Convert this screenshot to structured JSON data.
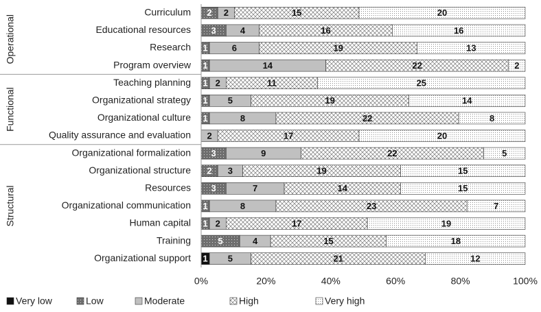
{
  "chart_data": {
    "type": "stacked-bar-100",
    "groups": [
      {
        "name": "Operational",
        "categories": [
          "Curriculum",
          "Educational resources",
          "Research",
          "Program overview"
        ]
      },
      {
        "name": "Functional",
        "categories": [
          "Teaching planning",
          "Organizational strategy",
          "Organizational culture",
          "Quality assurance and evaluation"
        ]
      },
      {
        "name": "Structural",
        "categories": [
          "Organizational formalization",
          "Organizational structure",
          "Resources",
          "Organizational communication",
          "Human capital",
          "Training",
          "Organizational support"
        ]
      }
    ],
    "series": [
      {
        "name": "Very low",
        "color": "#111111",
        "values": [
          null,
          null,
          null,
          null,
          null,
          null,
          null,
          null,
          null,
          null,
          null,
          null,
          null,
          null,
          1
        ]
      },
      {
        "name": "Low",
        "color": "#6e6e6e",
        "values": [
          2,
          3,
          1,
          1,
          1,
          1,
          1,
          null,
          3,
          2,
          3,
          1,
          1,
          5,
          null
        ]
      },
      {
        "name": "Moderate",
        "color": "#c0c0c0",
        "values": [
          2,
          4,
          6,
          14,
          2,
          5,
          8,
          2,
          9,
          3,
          7,
          8,
          2,
          4,
          5
        ]
      },
      {
        "name": "High",
        "color": "#ffffff",
        "values": [
          15,
          16,
          19,
          22,
          11,
          19,
          22,
          17,
          22,
          19,
          14,
          23,
          17,
          15,
          21
        ]
      },
      {
        "name": "Very high",
        "color": "#f4f4f4",
        "values": [
          20,
          16,
          13,
          2,
          25,
          14,
          8,
          20,
          5,
          15,
          15,
          7,
          19,
          18,
          12
        ]
      }
    ],
    "xlim": [
      0,
      100
    ],
    "xticks": [
      {
        "value": 0,
        "label": "0%"
      },
      {
        "value": 20,
        "label": "20%"
      },
      {
        "value": 40,
        "label": "40%"
      },
      {
        "value": 60,
        "label": "60%"
      },
      {
        "value": 80,
        "label": "80%"
      },
      {
        "value": 100,
        "label": "100%"
      }
    ],
    "legend": "bottom"
  }
}
